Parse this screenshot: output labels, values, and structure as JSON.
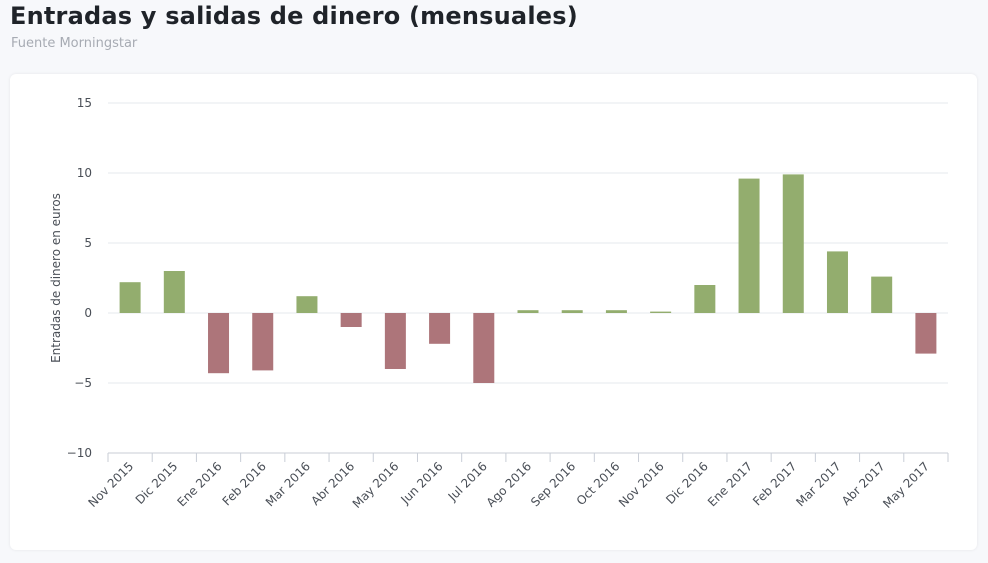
{
  "header": {
    "title": "Entradas y salidas de dinero (mensuales)",
    "subtitle": "Fuente Morningstar"
  },
  "chart_data": {
    "type": "bar",
    "ylabel": "Entradas de dinero en euros",
    "xlabel": "",
    "ylim": [
      -10,
      15
    ],
    "yticks": [
      15,
      10,
      5,
      0,
      -5,
      -10
    ],
    "ytick_labels": [
      "15",
      "10",
      "5",
      "0",
      "−5",
      "−10"
    ],
    "grid": true,
    "colors": {
      "positive": "#93ad6e",
      "negative": "#ad757a",
      "grid": "#e6e8ec",
      "axis": "#c8cdd6"
    },
    "categories": [
      "Nov 2015",
      "Dic 2015",
      "Ene 2016",
      "Feb 2016",
      "Mar 2016",
      "Abr 2016",
      "May 2016",
      "Jun 2016",
      "Jul 2016",
      "Ago 2016",
      "Sep 2016",
      "Oct 2016",
      "Nov 2016",
      "Dic 2016",
      "Ene 2017",
      "Feb 2017",
      "Mar 2017",
      "Abr 2017",
      "May 2017"
    ],
    "values": [
      2.2,
      3.0,
      -4.3,
      -4.1,
      1.2,
      -1.0,
      -4.0,
      -2.2,
      -5.0,
      0.2,
      0.2,
      0.2,
      0.1,
      2.0,
      9.6,
      9.9,
      4.4,
      2.6,
      -2.9
    ]
  }
}
